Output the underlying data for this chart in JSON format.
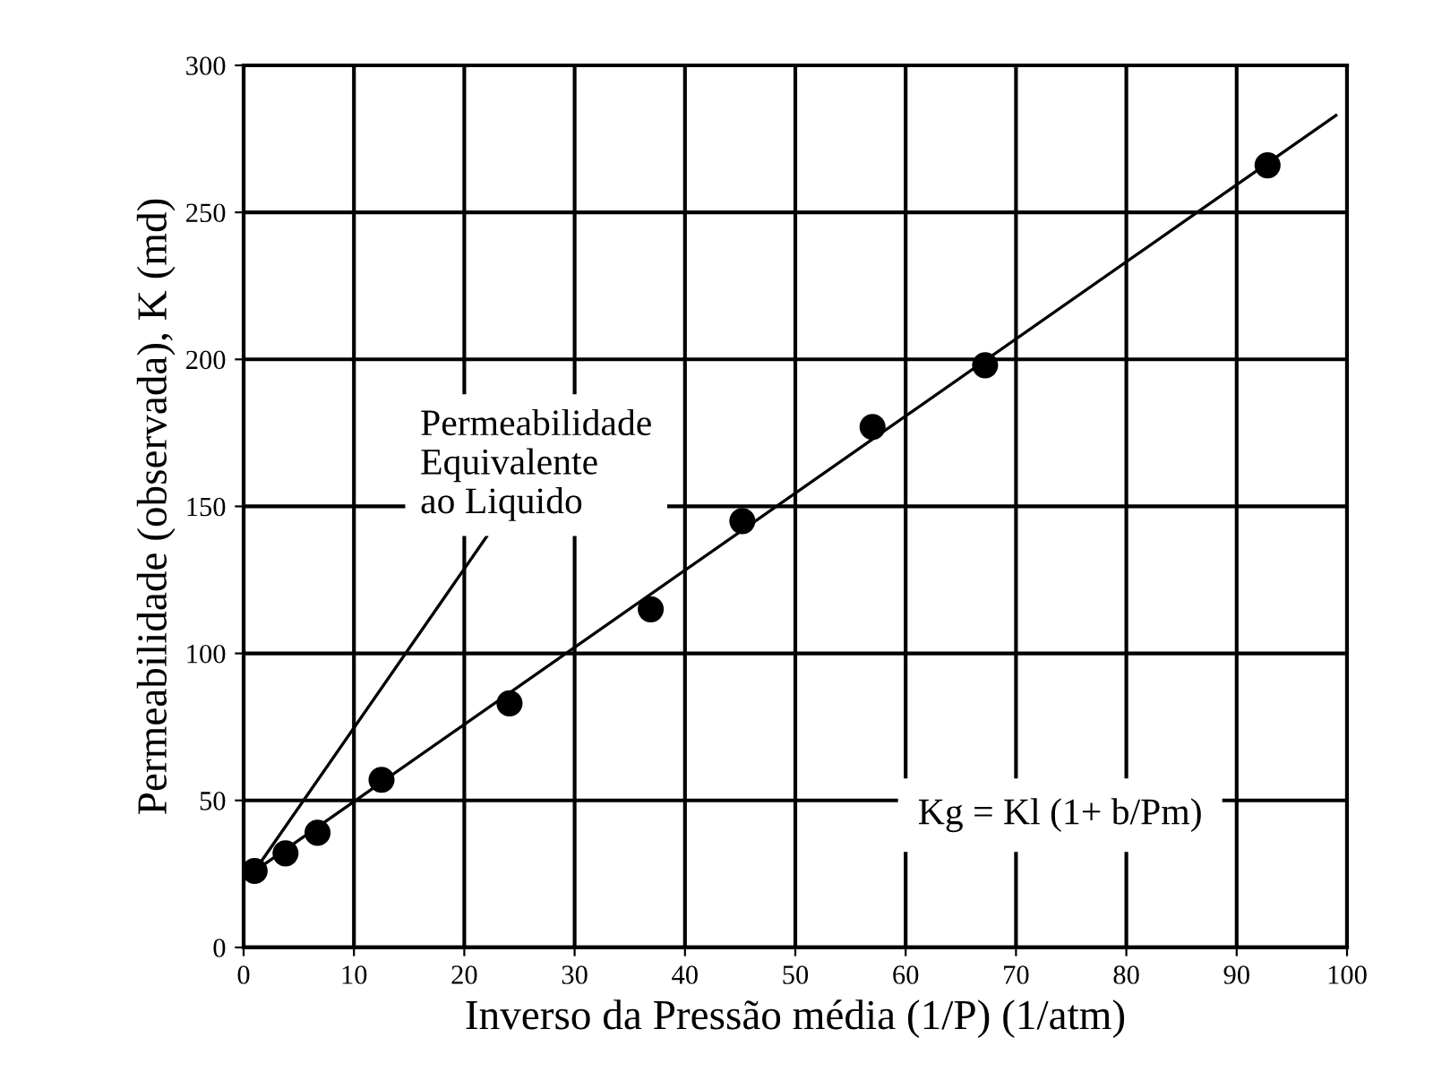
{
  "chart_data": {
    "type": "scatter",
    "xlabel": "Inverso da Pressão média (1/P) (1/atm)",
    "ylabel": "Permeabilidade (observada), K (md)",
    "x": [
      1,
      3.8,
      6.7,
      12.5,
      24.1,
      36.9,
      45.2,
      57,
      67.2,
      92.8
    ],
    "series": [
      {
        "color": "#000000",
        "marker": "circle",
        "values": [
          26,
          32,
          39,
          57,
          83,
          115,
          145,
          177,
          198,
          266
        ]
      },
      {
        "type": "line",
        "color": "#000000",
        "marker": "none",
        "x": [
          1,
          99
        ],
        "values": [
          26,
          283
        ]
      }
    ],
    "xlim": [
      0,
      100
    ],
    "xticks": [
      0,
      10,
      20,
      30,
      40,
      50,
      60,
      70,
      80,
      90,
      100
    ],
    "ylim": [
      0,
      300
    ],
    "yticks": [
      0,
      50,
      100,
      150,
      200,
      250,
      300
    ],
    "grid": true,
    "annotations": [
      {
        "text": "Permeabilidade\nEquivalente\nao Liquido",
        "x": 1,
        "y": 26
      },
      "Kg = Kl (1+ b/Pm)"
    ]
  }
}
